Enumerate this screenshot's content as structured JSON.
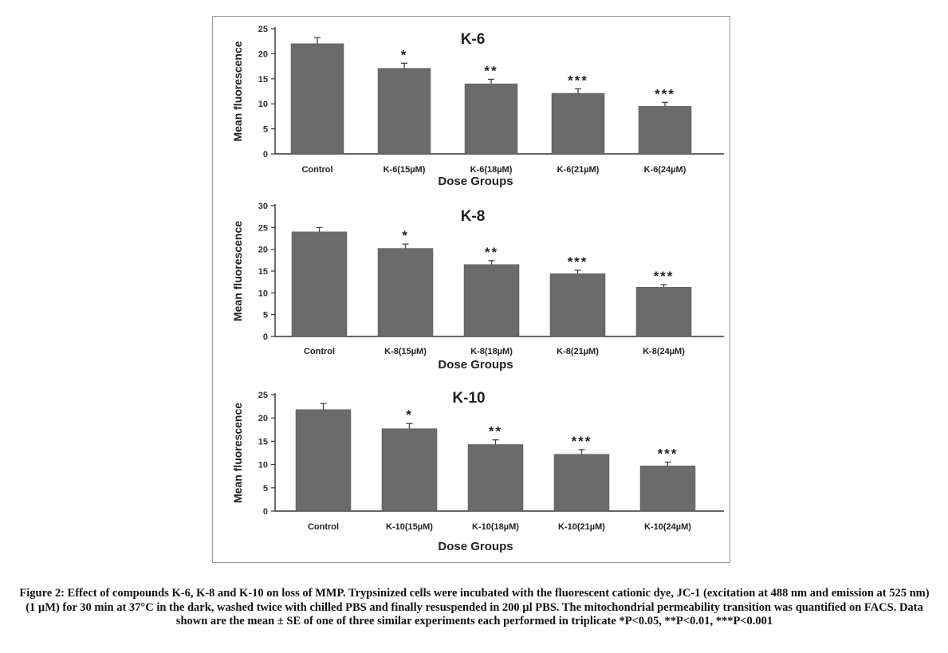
{
  "caption": "Figure 2: Effect of compounds K-6, K-8 and K-10 on loss of MMP. Trypsinized cells were incubated with the fluorescent cationic dye, JC-1 (excitation at 488 nm and emission at 525 nm) (1 µM) for 30 min at 37°C in the dark, washed twice with chilled PBS and finally resuspended in 200 µl PBS. The mitochondrial permeability transition was quantified on FACS. Data shown are the mean ± SE of one of three similar experiments each performed in triplicate *P<0.05, **P<0.01, ***P<0.001",
  "chart_data": [
    {
      "type": "bar",
      "title": "K-6",
      "xlabel": "Dose Groups",
      "ylabel": "Mean fluorescence",
      "categories": [
        "Control",
        "K-6(15µM)",
        "K-6(18µM)",
        "K-6(21µM)",
        "K-6(24µM)"
      ],
      "values": [
        22,
        17.1,
        14,
        12.1,
        9.5
      ],
      "errors": [
        1.2,
        1.0,
        0.9,
        0.9,
        0.8
      ],
      "significance": [
        "",
        "*",
        "**",
        "***",
        "***"
      ],
      "ylim": [
        0,
        25
      ],
      "yticks": [
        0,
        5,
        10,
        15,
        20,
        25
      ],
      "color": "#6b6b6b"
    },
    {
      "type": "bar",
      "title": "K-8",
      "xlabel": "Dose Groups",
      "ylabel": "Mean fluorescence",
      "categories": [
        "Control",
        "K-8(15µM)",
        "K-8(18µM)",
        "K-8(21µM)",
        "K-8(24µM)"
      ],
      "values": [
        24,
        20.2,
        16.5,
        14.4,
        11.3
      ],
      "errors": [
        1.0,
        1.0,
        0.9,
        0.8,
        0.6
      ],
      "significance": [
        "",
        "*",
        "**",
        "***",
        "***"
      ],
      "ylim": [
        0,
        30
      ],
      "yticks": [
        0,
        5,
        10,
        15,
        20,
        25,
        30
      ],
      "color": "#6b6b6b"
    },
    {
      "type": "bar",
      "title": "K-10",
      "xlabel": "Dose Groups",
      "ylabel": "Mean fluorescence",
      "categories": [
        "Control",
        "K-10(15µM)",
        "K-10(18µM)",
        "K-10(21µM)",
        "K-10(24µM)"
      ],
      "values": [
        21.8,
        17.7,
        14.3,
        12.2,
        9.7
      ],
      "errors": [
        1.3,
        1.1,
        1.0,
        1.0,
        0.8
      ],
      "significance": [
        "",
        "*",
        "**",
        "***",
        "***"
      ],
      "ylim": [
        0,
        25
      ],
      "yticks": [
        0,
        5,
        10,
        15,
        20,
        25
      ],
      "color": "#6b6b6b"
    }
  ]
}
